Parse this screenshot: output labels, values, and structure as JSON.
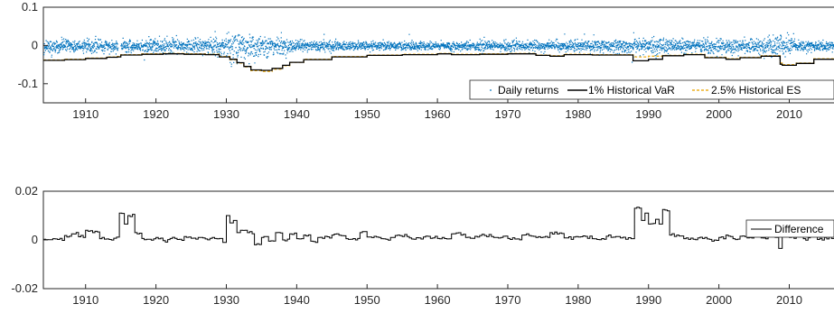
{
  "chart_data": [
    {
      "type": "line",
      "title": "",
      "xlabel": "",
      "ylabel": "",
      "xlim": [
        1904,
        2017
      ],
      "ylim": [
        -0.15,
        0.1
      ],
      "x_ticks": [
        1910,
        1920,
        1930,
        1940,
        1950,
        1960,
        1970,
        1980,
        1990,
        2000,
        2010
      ],
      "x_tick_labels": [
        "1910",
        "1920",
        "1930",
        "1940",
        "1950",
        "1960",
        "1970",
        "1980",
        "1990",
        "2000",
        "2010"
      ],
      "y_ticks": [
        0.1,
        0,
        -0.1
      ],
      "y_tick_labels": [
        "0.1",
        "0",
        "-0.1"
      ],
      "legend_position": "bottom-right",
      "series": [
        {
          "name": "Daily returns",
          "style": "points",
          "color": "#0072BD",
          "note": "dense daily return scatter around zero",
          "spread_envelope": [
            {
              "x": 1904,
              "sd": 0.011
            },
            {
              "x": 1914,
              "sd": 0.009
            },
            {
              "x": 1916,
              "sd": 0.01
            },
            {
              "x": 1929,
              "sd": 0.014
            },
            {
              "x": 1932,
              "sd": 0.03
            },
            {
              "x": 1934,
              "sd": 0.022
            },
            {
              "x": 1938,
              "sd": 0.014
            },
            {
              "x": 1940,
              "sd": 0.01
            },
            {
              "x": 1950,
              "sd": 0.007
            },
            {
              "x": 1960,
              "sd": 0.007
            },
            {
              "x": 1970,
              "sd": 0.009
            },
            {
              "x": 1980,
              "sd": 0.01
            },
            {
              "x": 1987,
              "sd": 0.012
            },
            {
              "x": 1988,
              "sd": 0.014
            },
            {
              "x": 1996,
              "sd": 0.01
            },
            {
              "x": 2000,
              "sd": 0.013
            },
            {
              "x": 2003,
              "sd": 0.009
            },
            {
              "x": 2008,
              "sd": 0.02
            },
            {
              "x": 2009.5,
              "sd": 0.016
            },
            {
              "x": 2012,
              "sd": 0.009
            },
            {
              "x": 2017,
              "sd": 0.008
            }
          ]
        },
        {
          "name": "1% Historical VaR",
          "style": "step",
          "color": "#000000",
          "x": [
            1904,
            1907,
            1910,
            1913,
            1914.5,
            1915,
            1918,
            1921,
            1924,
            1927,
            1929,
            1930.5,
            1931.5,
            1932.5,
            1933.5,
            1935,
            1936.5,
            1938,
            1939,
            1941,
            1945,
            1950,
            1955,
            1960,
            1962,
            1966,
            1970,
            1974,
            1976,
            1978,
            1982,
            1987.8,
            1990,
            1992,
            1995,
            1998,
            2001,
            2003,
            2006,
            2008.7,
            2009,
            2011,
            2013.5,
            2017
          ],
          "values": [
            -0.039,
            -0.037,
            -0.034,
            -0.031,
            -0.03,
            -0.025,
            -0.023,
            -0.022,
            -0.023,
            -0.024,
            -0.03,
            -0.036,
            -0.045,
            -0.055,
            -0.064,
            -0.065,
            -0.06,
            -0.052,
            -0.044,
            -0.037,
            -0.03,
            -0.026,
            -0.024,
            -0.022,
            -0.024,
            -0.023,
            -0.022,
            -0.026,
            -0.028,
            -0.024,
            -0.025,
            -0.04,
            -0.036,
            -0.027,
            -0.024,
            -0.032,
            -0.036,
            -0.032,
            -0.028,
            -0.049,
            -0.052,
            -0.047,
            -0.036,
            -0.03
          ]
        },
        {
          "name": "2.5% Historical ES",
          "style": "step-dashed",
          "color": "#EDB120",
          "x": [
            1904,
            1907,
            1910,
            1913,
            1914.5,
            1915,
            1918,
            1921,
            1924,
            1927,
            1929,
            1930.5,
            1931.5,
            1932.5,
            1933.5,
            1935,
            1936.5,
            1938,
            1939,
            1941,
            1945,
            1950,
            1955,
            1960,
            1962,
            1966,
            1970,
            1974,
            1976,
            1978,
            1982,
            1987.8,
            1990,
            1992,
            1995,
            1998,
            2001,
            2003,
            2006,
            2008.7,
            2009,
            2011,
            2013.5,
            2017
          ],
          "values": [
            -0.038,
            -0.036,
            -0.033,
            -0.03,
            -0.029,
            -0.024,
            -0.022,
            -0.021,
            -0.022,
            -0.023,
            -0.029,
            -0.037,
            -0.046,
            -0.056,
            -0.066,
            -0.068,
            -0.062,
            -0.053,
            -0.044,
            -0.036,
            -0.029,
            -0.025,
            -0.023,
            -0.021,
            -0.023,
            -0.022,
            -0.021,
            -0.025,
            -0.027,
            -0.023,
            -0.024,
            -0.03,
            -0.028,
            -0.026,
            -0.023,
            -0.031,
            -0.035,
            -0.031,
            -0.027,
            -0.046,
            -0.05,
            -0.046,
            -0.035,
            -0.029
          ]
        }
      ]
    },
    {
      "type": "line",
      "title": "",
      "xlabel": "",
      "ylabel": "",
      "xlim": [
        1904,
        2017
      ],
      "ylim": [
        -0.02,
        0.02
      ],
      "x_ticks": [
        1910,
        1920,
        1930,
        1940,
        1950,
        1960,
        1970,
        1980,
        1990,
        2000,
        2010
      ],
      "x_tick_labels": [
        "1910",
        "1920",
        "1930",
        "1940",
        "1950",
        "1960",
        "1970",
        "1980",
        "1990",
        "2000",
        "2010"
      ],
      "y_ticks": [
        0.02,
        0,
        -0.02
      ],
      "y_tick_labels": [
        "0.02",
        "0",
        "-0.02"
      ],
      "legend_position": "top-right",
      "series": [
        {
          "name": "Difference",
          "style": "step",
          "color": "#000000",
          "x": [
            1904,
            1905,
            1906,
            1907,
            1908,
            1909,
            1910,
            1911,
            1912,
            1913,
            1914,
            1914.8,
            1915.5,
            1916,
            1917,
            1918,
            1919,
            1920,
            1921,
            1922,
            1923,
            1924,
            1925,
            1926,
            1927,
            1928,
            1929,
            1929.5,
            1930,
            1930.5,
            1931,
            1931.5,
            1932,
            1933,
            1934,
            1935,
            1936,
            1937,
            1938,
            1939,
            1940,
            1941,
            1942,
            1943,
            1945,
            1947,
            1949,
            1950,
            1952,
            1954,
            1956,
            1958,
            1960,
            1962,
            1964,
            1966,
            1968,
            1970,
            1972,
            1974,
            1976,
            1978,
            1980,
            1982,
            1984,
            1986,
            1987.5,
            1988,
            1989,
            1989.5,
            1990,
            1991,
            1991.5,
            1992,
            1993,
            1995,
            1997,
            1999,
            2000,
            2001,
            2002,
            2003,
            2004,
            2005,
            2006,
            2007,
            2008,
            2008.5,
            2009,
            2010,
            2011,
            2012,
            2013,
            2014,
            2015,
            2016,
            2017
          ],
          "values": [
            0.0003,
            0.0001,
            0.0002,
            0.0018,
            0.0025,
            0.0013,
            0.004,
            0.003,
            0.0005,
            0.0004,
            0.0007,
            0.011,
            0.0065,
            0.01,
            0.003,
            0.0006,
            0.0003,
            0.001,
            -0.0003,
            0.0006,
            0.0002,
            0.0014,
            0.0007,
            0.001,
            0.0004,
            0.001,
            0.0006,
            -0.001,
            0.01,
            0.007,
            0.008,
            0.003,
            0.004,
            0.003,
            -0.002,
            0.001,
            -0.0005,
            0.003,
            0.0,
            0.0025,
            0.0005,
            0.002,
            -0.0005,
            0.001,
            0.002,
            0.0005,
            0.003,
            0.0012,
            0.0005,
            0.0018,
            0.0008,
            0.0012,
            0.0006,
            0.0025,
            0.001,
            0.0018,
            0.001,
            0.0006,
            0.002,
            0.001,
            0.003,
            0.0008,
            0.0012,
            0.0005,
            0.0015,
            0.0008,
            0.0005,
            0.013,
            0.008,
            0.011,
            0.0065,
            0.0085,
            0.0065,
            0.0125,
            0.002,
            0.0005,
            0.0008,
            -0.0005,
            0.001,
            0.002,
            0.0005,
            0.0015,
            0.0008,
            0.002,
            0.0008,
            0.004,
            0.001,
            -0.0035,
            0.0015,
            0.001,
            0.002,
            0.0005,
            0.003,
            0.0002,
            0.001,
            0.0006,
            0.0006
          ]
        }
      ]
    }
  ]
}
